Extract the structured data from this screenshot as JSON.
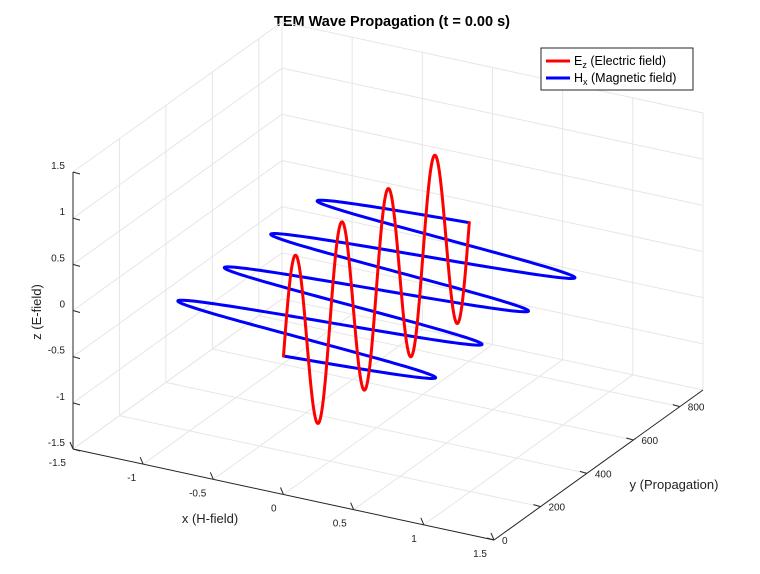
{
  "chart_data": {
    "type": "line",
    "title": "TEM Wave Propagation (t = 0.00 s)",
    "xlabel": "x (H-field)",
    "ylabel": "y (Propagation)",
    "zlabel": "z (E-field)",
    "xlim": [
      -1.5,
      1.5
    ],
    "ylim": [
      0,
      900
    ],
    "zlim": [
      -1.5,
      1.5
    ],
    "x_ticks": [
      "-1.5",
      "-1",
      "-0.5",
      "0",
      "0.5",
      "1",
      "1.5"
    ],
    "y_ticks": [
      "0",
      "200",
      "400",
      "600",
      "800"
    ],
    "z_ticks": [
      "-1.5",
      "-1",
      "-0.5",
      "0",
      "0.5",
      "1",
      "1.5"
    ],
    "grid": true,
    "legend_position": "top-right",
    "series": [
      {
        "name_main": "E",
        "name_sub": "z",
        "name_rest": " (Electric field)",
        "color": "#ff0000",
        "component": "z",
        "amplitude": 1,
        "wavelength": 200,
        "y_start": 0,
        "y_end": 800
      },
      {
        "name_main": "H",
        "name_sub": "x",
        "name_rest": " (Magnetic field)",
        "color": "#0000ff",
        "component": "x",
        "amplitude": 1,
        "wavelength": 200,
        "y_start": 0,
        "y_end": 800
      }
    ]
  }
}
